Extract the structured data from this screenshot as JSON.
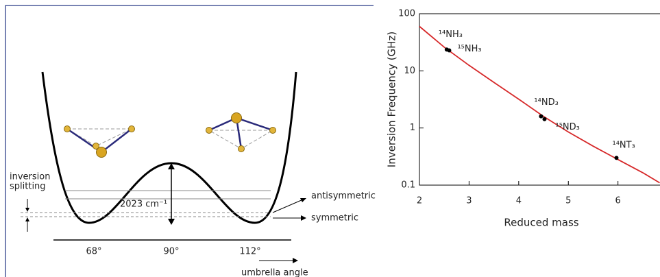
{
  "diagram": {
    "splitting_label": [
      "inversion",
      "splitting"
    ],
    "barrier_label": "2023 cm⁻¹",
    "upper_level_label": "antisymmetric",
    "lower_level_label": "symmetric",
    "angle_labels": [
      "68°",
      "90°",
      "112°"
    ],
    "axis_label": "umbrella angle"
  },
  "chart_data": {
    "type": "scatter",
    "ylabel": "Inversion Frequency (GHz)",
    "xlabel": "Reduced mass",
    "xlim": [
      2,
      6.84
    ],
    "xticks": [
      2,
      3,
      4,
      5,
      6
    ],
    "ylim": [
      0.1,
      100
    ],
    "yticks": [
      0.1,
      1,
      10,
      100
    ],
    "log_y": true,
    "curve": {
      "color": "#d62728",
      "x": [
        2,
        2.5,
        3,
        3.5,
        4,
        4.5,
        5,
        5.5,
        6,
        6.5,
        6.84
      ],
      "values": [
        60,
        26,
        12.5,
        6.3,
        3.2,
        1.6,
        0.85,
        0.48,
        0.28,
        0.165,
        0.11
      ]
    },
    "points": {
      "color": "#000000",
      "labels": [
        "¹⁴NH₃",
        "¹⁵NH₃",
        "¹⁴ND₃",
        "¹⁵ND₃",
        "¹⁴NT₃"
      ],
      "x": [
        2.55,
        2.6,
        4.45,
        4.52,
        5.97
      ],
      "values": [
        23.6,
        22.8,
        1.6,
        1.43,
        0.3
      ]
    }
  }
}
